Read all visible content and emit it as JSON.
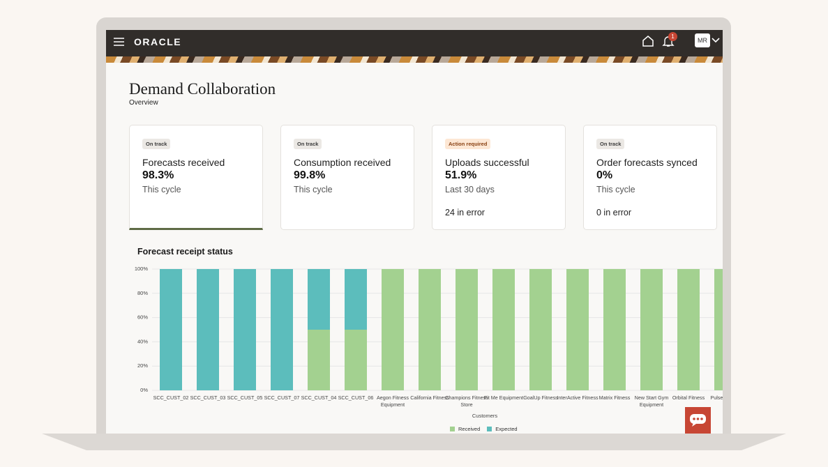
{
  "header": {
    "logo": "ORACLE",
    "notification_count": 1,
    "avatar": "MR"
  },
  "page": {
    "title": "Demand Collaboration",
    "subtitle": "Overview"
  },
  "cards": [
    {
      "status": "On track",
      "title": "Forecasts received",
      "value": "98.3%",
      "period": "This cycle"
    },
    {
      "status": "On track",
      "title": "Consumption received",
      "value": "99.8%",
      "period": "This cycle"
    },
    {
      "status": "Action required",
      "title": "Uploads successful",
      "value": "51.9%",
      "period": "Last 30 days",
      "detail": "24 in error"
    },
    {
      "status": "On track",
      "title": "Order forecasts synced",
      "value": "0%",
      "period": "This cycle",
      "detail": "0 in error"
    }
  ],
  "chart_data": {
    "type": "bar",
    "stacked": true,
    "title": "Forecast receipt status",
    "x_label": "Customers",
    "categories": [
      "SCC_CUST_02",
      "SCC_CUST_03",
      "SCC_CUST_05",
      "SCC_CUST_07",
      "SCC_CUST_04",
      "SCC_CUST_06",
      "Aegon Fitness Equipment",
      "California Fitness",
      "Champions Fitness Store",
      "Fit Me Equipment",
      "GoalUp Fitness",
      "InterActive Fitness",
      "Matrix Fitness",
      "New Start Gym Equipment",
      "Orbital Fitness",
      "Pulse Fitness"
    ],
    "series": [
      {
        "name": "Received",
        "color": "#a3d190",
        "values": [
          0,
          0,
          0,
          0,
          50,
          50,
          100,
          100,
          100,
          100,
          100,
          100,
          100,
          100,
          100,
          100
        ]
      },
      {
        "name": "Expected",
        "color": "#5cbdbc",
        "values": [
          100,
          100,
          100,
          100,
          50,
          50,
          0,
          0,
          0,
          0,
          0,
          0,
          0,
          0,
          0,
          0
        ]
      }
    ],
    "ylim": [
      0,
      100
    ],
    "yticks": [
      {
        "value": 0,
        "label": "0%"
      },
      {
        "value": 20,
        "label": "20%"
      },
      {
        "value": 40,
        "label": "40%"
      },
      {
        "value": 60,
        "label": "60%"
      },
      {
        "value": 80,
        "label": "80%"
      },
      {
        "value": 100,
        "label": "100%"
      }
    ],
    "grid": true,
    "legend": "bottom"
  }
}
